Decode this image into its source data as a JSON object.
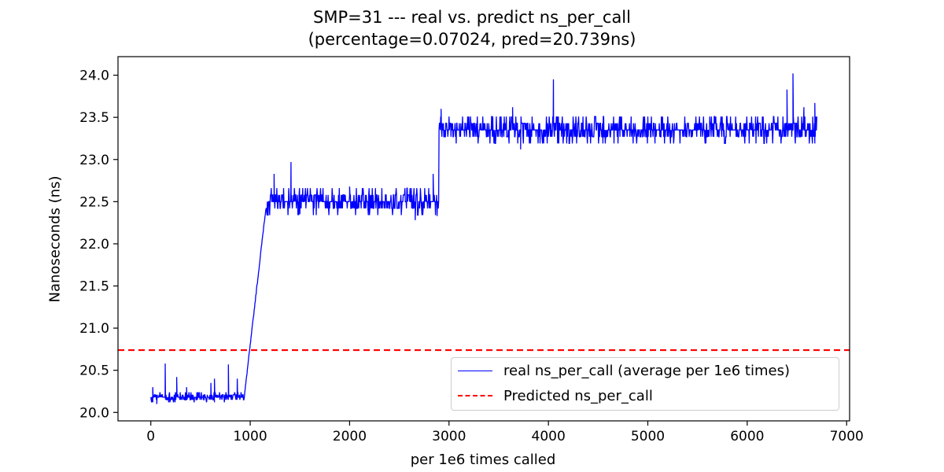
{
  "chart_data": {
    "type": "line",
    "title_line1": "SMP=31 --- real vs. predict ns_per_call",
    "title_line2": "(percentage=0.07024, pred=20.739ns)",
    "xlabel": "per 1e6 times called",
    "ylabel": "Nanoseconds (ns)",
    "xlim": [
      -330,
      7030
    ],
    "ylim": [
      19.9,
      24.22
    ],
    "x_ticks": [
      0,
      1000,
      2000,
      3000,
      4000,
      5000,
      6000,
      7000
    ],
    "x_tick_labels": [
      "0",
      "1000",
      "2000",
      "3000",
      "4000",
      "5000",
      "6000",
      "7000"
    ],
    "y_ticks": [
      20.0,
      20.5,
      21.0,
      21.5,
      22.0,
      22.5,
      23.0,
      23.5,
      24.0
    ],
    "y_tick_labels": [
      "20.0",
      "20.5",
      "21.0",
      "21.5",
      "22.0",
      "22.5",
      "23.0",
      "23.5",
      "24.0"
    ],
    "grid": false,
    "legend_position": "lower-right",
    "series": [
      {
        "name": "real ns_per_call (average per 1e6 times)",
        "color": "#0000ff",
        "style": "solid",
        "segments": [
          {
            "x_start": 0,
            "x_end": 940,
            "level": 20.18,
            "noise": 0.03
          },
          {
            "x_start": 940,
            "x_end": 1160,
            "level_start": 20.18,
            "level_end": 22.45,
            "noise": 0.03
          },
          {
            "x_start": 1160,
            "x_end": 2900,
            "level": 22.5,
            "noise": 0.08
          },
          {
            "x_start": 2900,
            "x_end": 6700,
            "level": 23.35,
            "noise": 0.08
          }
        ],
        "spikes": [
          {
            "x": 20,
            "y": 20.3
          },
          {
            "x": 60,
            "y": 20.1
          },
          {
            "x": 145,
            "y": 20.58
          },
          {
            "x": 260,
            "y": 20.42
          },
          {
            "x": 360,
            "y": 20.3
          },
          {
            "x": 605,
            "y": 20.35
          },
          {
            "x": 640,
            "y": 20.4
          },
          {
            "x": 780,
            "y": 20.57
          },
          {
            "x": 870,
            "y": 20.4
          },
          {
            "x": 1240,
            "y": 22.83
          },
          {
            "x": 1410,
            "y": 22.97
          },
          {
            "x": 1500,
            "y": 22.35
          },
          {
            "x": 2000,
            "y": 22.68
          },
          {
            "x": 2660,
            "y": 22.28
          },
          {
            "x": 2840,
            "y": 22.83
          },
          {
            "x": 2880,
            "y": 22.33
          },
          {
            "x": 2920,
            "y": 23.6
          },
          {
            "x": 3640,
            "y": 23.62
          },
          {
            "x": 3720,
            "y": 23.12
          },
          {
            "x": 4050,
            "y": 23.95
          },
          {
            "x": 6400,
            "y": 23.83
          },
          {
            "x": 6460,
            "y": 24.02
          },
          {
            "x": 6570,
            "y": 23.62
          },
          {
            "x": 6680,
            "y": 23.67
          }
        ]
      },
      {
        "name": "Predicted ns_per_call",
        "color": "#ff0000",
        "style": "dashed",
        "y": 20.739
      }
    ]
  }
}
